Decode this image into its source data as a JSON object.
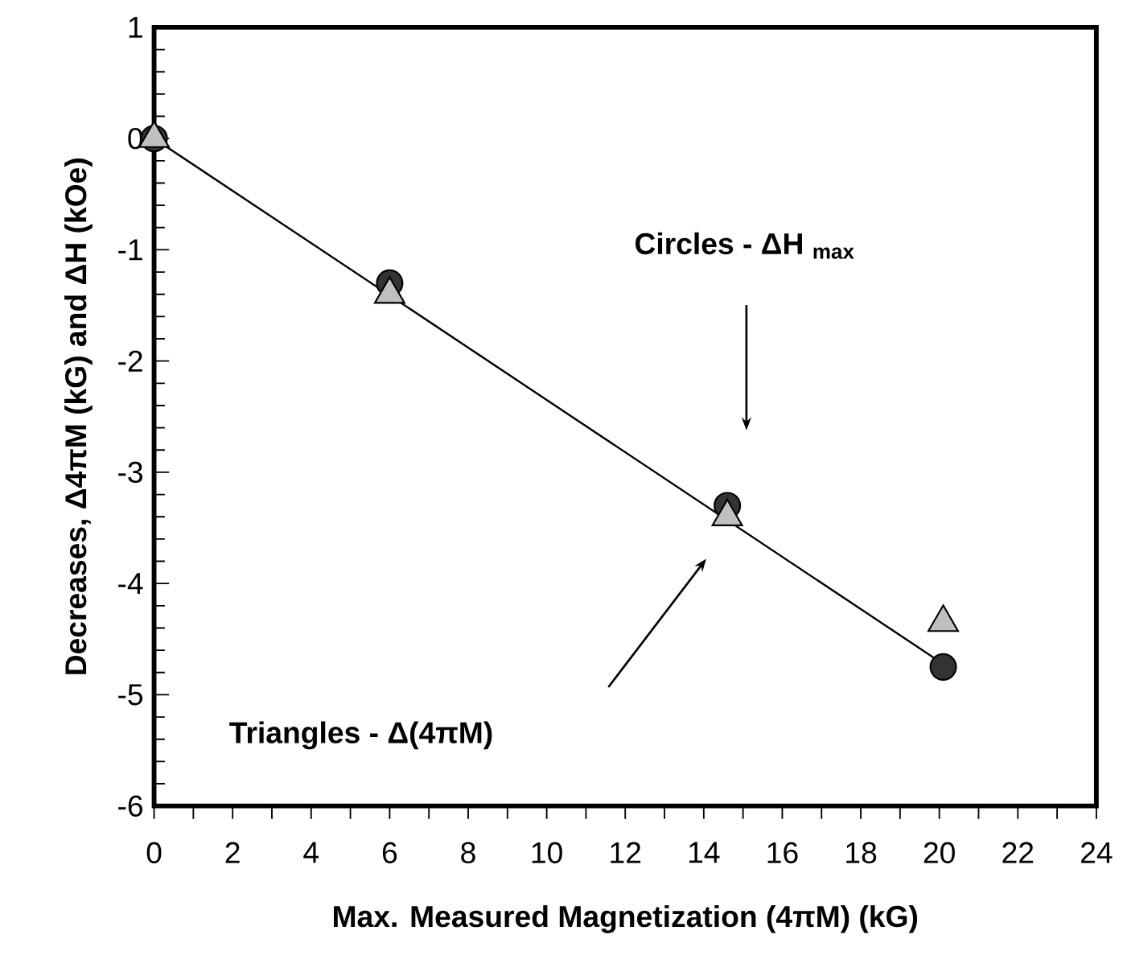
{
  "chart_data": {
    "type": "scatter",
    "xlabel": "Max. Measured Magnetization  (4πM) (kG)",
    "ylabel": "Decreases,  Δ4πM (kG) and ΔH (kOe)",
    "xlim": [
      0,
      24
    ],
    "ylim": [
      -6,
      1
    ],
    "xticks": [
      0,
      2,
      4,
      6,
      8,
      10,
      12,
      14,
      16,
      18,
      20,
      22,
      24
    ],
    "yticks": [
      -6,
      -5,
      -4,
      -3,
      -2,
      -1,
      0,
      1
    ],
    "grid": false,
    "series": [
      {
        "type": "line",
        "color": "#000000",
        "marker": "none",
        "line_style": "solid",
        "x": [
          0,
          20
        ],
        "values": [
          0,
          -4.7
        ]
      },
      {
        "color": "#333333",
        "marker": "circle",
        "x": [
          0,
          6,
          14.6,
          20.1
        ],
        "values": [
          0,
          -1.3,
          -3.3,
          -4.75
        ]
      },
      {
        "color": "#c0c0c0",
        "marker": "triangle",
        "x": [
          0,
          6,
          14.6,
          20.1
        ],
        "values": [
          0,
          -1.4,
          -3.4,
          -4.35
        ]
      }
    ],
    "annotations": [
      "Circles - ΔH $_{max}$",
      "Triangles - Δ(4πM)"
    ]
  }
}
